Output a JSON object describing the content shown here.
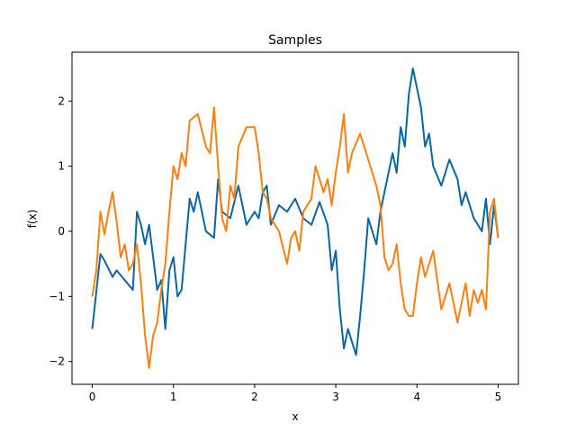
{
  "chart_data": {
    "type": "line",
    "title": "Samples",
    "xlabel": "x",
    "ylabel": "f(x)",
    "xlim": [
      -0.25,
      5.25
    ],
    "ylim": [
      -2.35,
      2.75
    ],
    "xticks": [
      0,
      1,
      2,
      3,
      4,
      5
    ],
    "yticks": [
      -2,
      -1,
      0,
      1,
      2
    ],
    "xtick_labels": [
      "0",
      "1",
      "2",
      "3",
      "4",
      "5"
    ],
    "ytick_labels": [
      "−2",
      "−1",
      "0",
      "1",
      "2"
    ],
    "grid": false,
    "series": [
      {
        "color": "#0a66a4",
        "x": [
          0.0,
          0.1,
          0.15,
          0.25,
          0.3,
          0.4,
          0.5,
          0.55,
          0.6,
          0.65,
          0.7,
          0.75,
          0.8,
          0.85,
          0.9,
          0.95,
          1.0,
          1.05,
          1.1,
          1.15,
          1.2,
          1.25,
          1.3,
          1.4,
          1.5,
          1.55,
          1.6,
          1.7,
          1.8,
          1.9,
          2.0,
          2.05,
          2.1,
          2.15,
          2.2,
          2.3,
          2.4,
          2.5,
          2.6,
          2.7,
          2.8,
          2.9,
          2.95,
          3.0,
          3.05,
          3.1,
          3.15,
          3.2,
          3.25,
          3.3,
          3.35,
          3.4,
          3.5,
          3.55,
          3.6,
          3.7,
          3.75,
          3.8,
          3.85,
          3.9,
          3.95,
          4.0,
          4.05,
          4.1,
          4.15,
          4.2,
          4.3,
          4.4,
          4.5,
          4.55,
          4.6,
          4.7,
          4.8,
          4.85,
          4.9,
          4.95,
          5.0
        ],
        "y": [
          -1.5,
          -0.35,
          -0.45,
          -0.7,
          -0.6,
          -0.75,
          -0.9,
          0.3,
          0.1,
          -0.2,
          0.1,
          -0.4,
          -0.9,
          -0.75,
          -1.5,
          -0.6,
          -0.4,
          -1.0,
          -0.9,
          -0.2,
          0.5,
          0.3,
          0.6,
          0.0,
          -0.1,
          0.8,
          0.3,
          0.2,
          0.7,
          0.1,
          0.3,
          0.2,
          0.6,
          0.7,
          0.1,
          0.4,
          0.3,
          0.5,
          0.2,
          0.1,
          0.45,
          0.1,
          -0.6,
          -0.3,
          -1.2,
          -1.8,
          -1.5,
          -1.7,
          -1.9,
          -1.3,
          -0.6,
          0.2,
          -0.2,
          0.3,
          0.6,
          1.2,
          0.9,
          1.6,
          1.3,
          2.1,
          2.5,
          2.2,
          1.9,
          1.3,
          1.5,
          1.0,
          0.7,
          1.1,
          0.8,
          0.4,
          0.6,
          0.2,
          0.0,
          0.5,
          -0.2,
          0.4,
          -0.1
        ]
      },
      {
        "color": "#ff7f0e",
        "x": [
          0.0,
          0.05,
          0.1,
          0.15,
          0.2,
          0.25,
          0.3,
          0.35,
          0.4,
          0.45,
          0.5,
          0.55,
          0.6,
          0.65,
          0.7,
          0.75,
          0.8,
          0.85,
          0.9,
          0.95,
          1.0,
          1.05,
          1.1,
          1.15,
          1.2,
          1.3,
          1.4,
          1.45,
          1.5,
          1.55,
          1.6,
          1.65,
          1.7,
          1.75,
          1.8,
          1.9,
          2.0,
          2.05,
          2.1,
          2.15,
          2.2,
          2.3,
          2.4,
          2.45,
          2.5,
          2.55,
          2.6,
          2.7,
          2.75,
          2.8,
          2.85,
          2.9,
          2.95,
          3.0,
          3.05,
          3.1,
          3.15,
          3.2,
          3.3,
          3.4,
          3.5,
          3.55,
          3.6,
          3.65,
          3.7,
          3.75,
          3.8,
          3.85,
          3.9,
          3.95,
          4.0,
          4.05,
          4.1,
          4.2,
          4.3,
          4.4,
          4.5,
          4.6,
          4.65,
          4.7,
          4.75,
          4.8,
          4.85,
          4.9,
          4.95,
          5.0
        ],
        "y": [
          -1.0,
          -0.6,
          0.3,
          -0.05,
          0.3,
          0.6,
          0.15,
          -0.4,
          -0.2,
          -0.6,
          -0.5,
          -0.2,
          -0.8,
          -1.6,
          -2.1,
          -1.6,
          -1.4,
          -0.9,
          -0.5,
          0.3,
          1.0,
          0.8,
          1.2,
          1.0,
          1.7,
          1.8,
          1.3,
          1.2,
          1.9,
          1.0,
          0.2,
          0.0,
          0.7,
          0.5,
          1.3,
          1.6,
          1.6,
          1.2,
          0.6,
          0.5,
          0.2,
          0.0,
          -0.5,
          -0.1,
          0.0,
          -0.3,
          0.3,
          0.5,
          1.0,
          0.8,
          0.6,
          0.8,
          0.4,
          0.9,
          1.3,
          1.8,
          0.9,
          1.2,
          1.5,
          1.1,
          0.7,
          0.4,
          -0.4,
          -0.6,
          -0.5,
          -0.2,
          -0.8,
          -1.2,
          -1.3,
          -1.3,
          -0.8,
          -0.4,
          -0.7,
          -0.3,
          -1.2,
          -0.8,
          -1.4,
          -0.8,
          -1.3,
          -0.9,
          -1.1,
          -0.9,
          -1.2,
          0.3,
          0.5,
          -0.1
        ]
      }
    ]
  }
}
